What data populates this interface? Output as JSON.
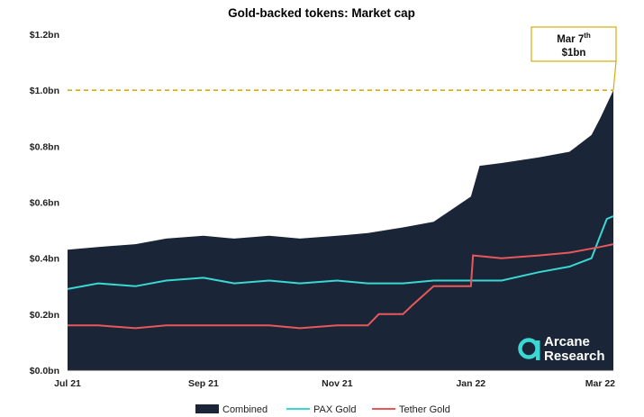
{
  "chart_data": {
    "type": "area",
    "title": "Gold-backed tokens: Market cap",
    "x_ticks": [
      "Jul 21",
      "Sep 21",
      "Nov 21",
      "Jan 22",
      "Mar 22"
    ],
    "y_ticks": [
      "$0.0bn",
      "$0.2bn",
      "$0.4bn",
      "$0.6bn",
      "$0.8bn",
      "$1.0bn",
      "$1.2bn"
    ],
    "ylim": [
      0,
      1.2
    ],
    "x_range": [
      "2021-07-01",
      "2022-03-07"
    ],
    "reference_line": {
      "value": 1.0,
      "color": "#d4ac0d"
    },
    "annotation": {
      "line1": "Mar 7",
      "superscript": "th",
      "line2": "$1bn",
      "x": "2022-03-07",
      "y": 1.0
    },
    "colors": {
      "combined": "#1b2538",
      "pax": "#3ad7d3",
      "tether": "#e8585a",
      "reference": "#d4ac0d"
    },
    "series": [
      {
        "name": "Combined",
        "kind": "area",
        "x": [
          "2021-07-01",
          "2021-07-15",
          "2021-08-01",
          "2021-08-15",
          "2021-09-01",
          "2021-09-15",
          "2021-10-01",
          "2021-10-15",
          "2021-11-01",
          "2021-11-15",
          "2021-12-01",
          "2021-12-15",
          "2022-01-01",
          "2022-01-05",
          "2022-01-15",
          "2022-02-01",
          "2022-02-15",
          "2022-02-25",
          "2022-03-01",
          "2022-03-04",
          "2022-03-07"
        ],
        "values": [
          0.43,
          0.44,
          0.45,
          0.47,
          0.48,
          0.47,
          0.48,
          0.47,
          0.48,
          0.49,
          0.51,
          0.53,
          0.62,
          0.73,
          0.74,
          0.76,
          0.78,
          0.84,
          0.9,
          0.95,
          1.0
        ]
      },
      {
        "name": "PAX Gold",
        "kind": "line",
        "x": [
          "2021-07-01",
          "2021-07-15",
          "2021-08-01",
          "2021-08-15",
          "2021-09-01",
          "2021-09-15",
          "2021-10-01",
          "2021-10-15",
          "2021-11-01",
          "2021-11-15",
          "2021-12-01",
          "2021-12-15",
          "2022-01-01",
          "2022-01-15",
          "2022-02-01",
          "2022-02-15",
          "2022-02-25",
          "2022-03-01",
          "2022-03-04",
          "2022-03-07"
        ],
        "values": [
          0.29,
          0.31,
          0.3,
          0.32,
          0.33,
          0.31,
          0.32,
          0.31,
          0.32,
          0.31,
          0.31,
          0.32,
          0.32,
          0.32,
          0.35,
          0.37,
          0.4,
          0.48,
          0.54,
          0.55
        ]
      },
      {
        "name": "Tether Gold",
        "kind": "line",
        "x": [
          "2021-07-01",
          "2021-07-15",
          "2021-08-01",
          "2021-08-15",
          "2021-09-01",
          "2021-09-15",
          "2021-10-01",
          "2021-10-15",
          "2021-11-01",
          "2021-11-15",
          "2021-11-20",
          "2021-12-01",
          "2021-12-05",
          "2021-12-15",
          "2022-01-01",
          "2022-01-02",
          "2022-01-15",
          "2022-02-01",
          "2022-02-15",
          "2022-03-01",
          "2022-03-07"
        ],
        "values": [
          0.16,
          0.16,
          0.15,
          0.16,
          0.16,
          0.16,
          0.16,
          0.15,
          0.16,
          0.16,
          0.2,
          0.2,
          0.23,
          0.3,
          0.3,
          0.41,
          0.4,
          0.41,
          0.42,
          0.44,
          0.45
        ]
      }
    ]
  },
  "logo": {
    "line1": "Arcane",
    "line2": "Research"
  }
}
